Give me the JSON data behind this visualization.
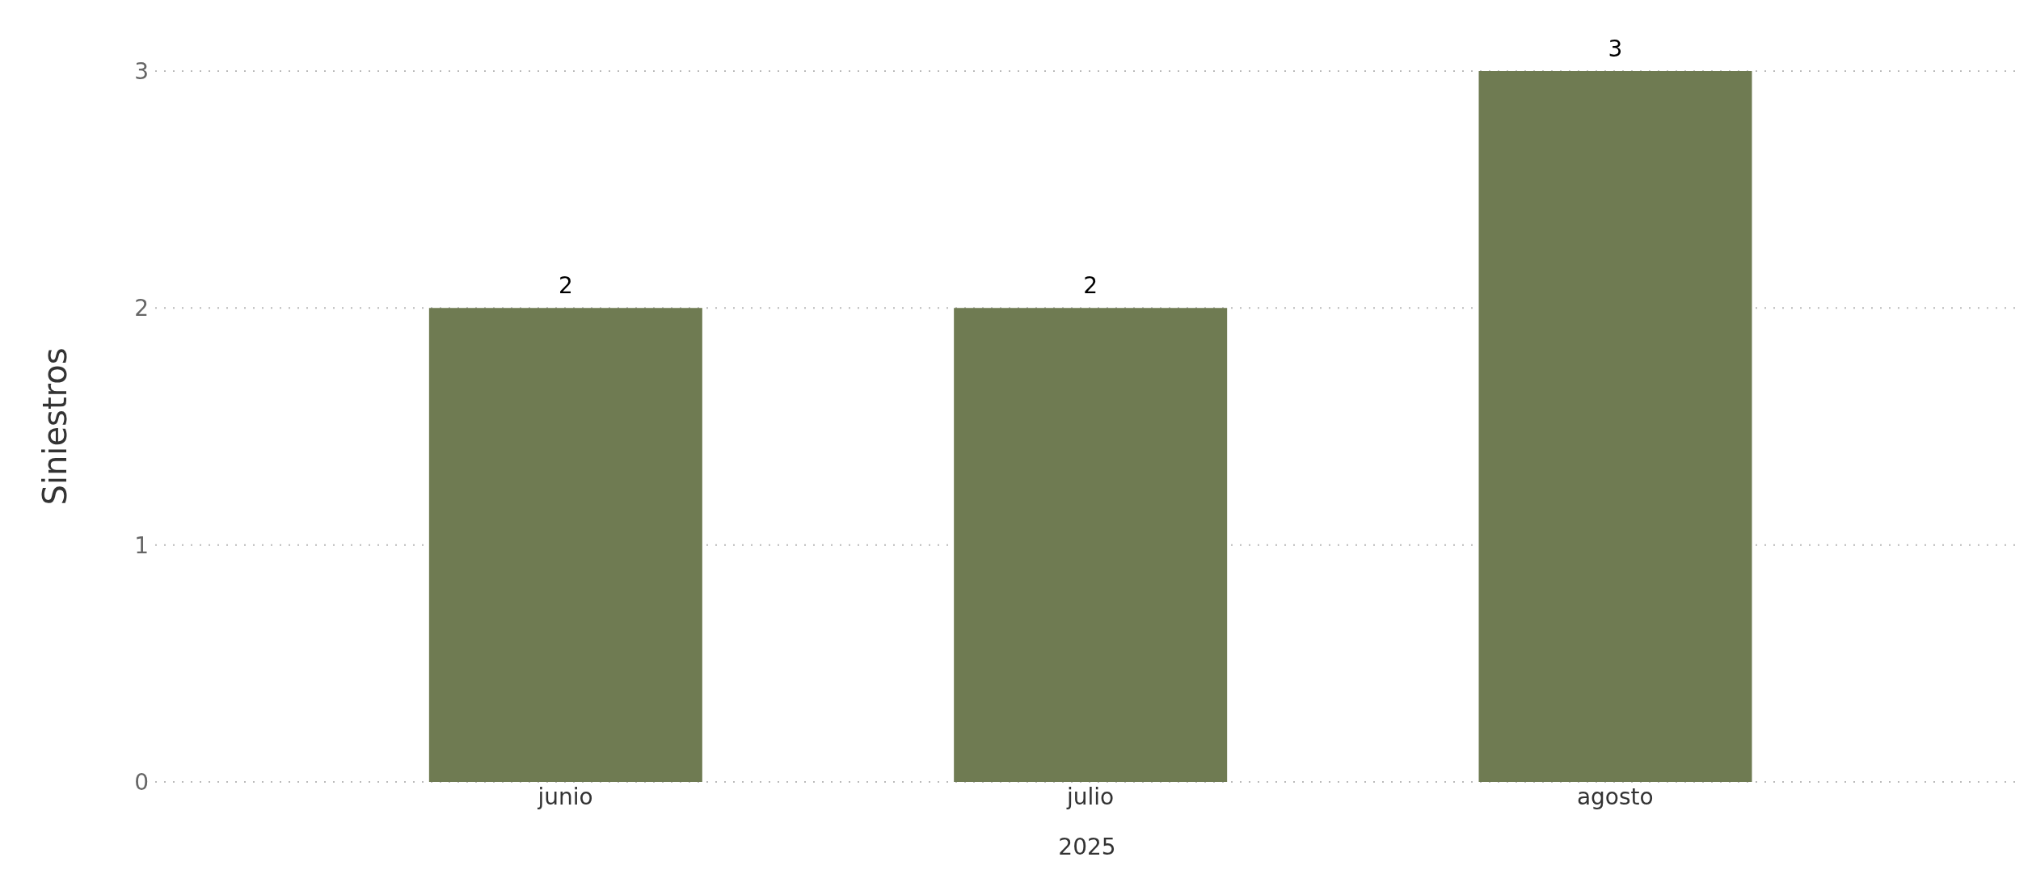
{
  "chart_data": {
    "type": "bar",
    "ylabel": "Siniestros",
    "xlabel": "2025",
    "categories": [
      "junio",
      "julio",
      "agosto"
    ],
    "values": [
      2,
      2,
      3
    ],
    "color": "#6f7b52",
    "ylim": [
      0,
      3
    ],
    "yticks": [
      0,
      1,
      2,
      3
    ],
    "grid": "y",
    "data_labels": true
  }
}
